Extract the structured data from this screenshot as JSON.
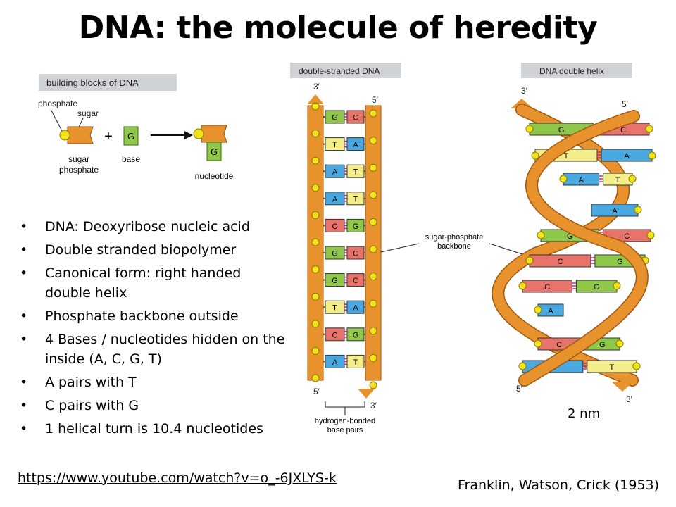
{
  "title": "DNA: the molecule of heredity",
  "bullets": [
    {
      "line1": "DNA: Deoxyribose nucleic acid"
    },
    {
      "line1": "Double stranded biopolymer"
    },
    {
      "line1": "Canonical form: right handed",
      "line2": "double helix"
    },
    {
      "line1": "Phosphate backbone outside"
    },
    {
      "line1": "4 Bases / nucleotides hidden on the",
      "line2": "inside (A, C, G, T)"
    },
    {
      "line1": "A pairs with T"
    },
    {
      "line1": "C pairs with G"
    },
    {
      "line1": "1 helical turn is 10.4 nucleotides"
    }
  ],
  "link": "https://www.youtube.com/watch?v=o_-6JXLYS-k",
  "credit": "Franklin, Watson, Crick (1953)",
  "blocks": {
    "header": "building blocks of DNA",
    "phosphate": "phosphate",
    "sugar": "sugar",
    "sugar_phosphate_1": "sugar",
    "sugar_phosphate_2": "phosphate",
    "base": "base",
    "base_letter": "G",
    "plus": "+",
    "nucleotide": "nucleotide",
    "nucleotide_letter": "G"
  },
  "ladder": {
    "header": "double-stranded DNA",
    "top_left": "3′",
    "top_right": "5′",
    "bottom_left": "5′",
    "bottom_right": "3′",
    "pairs": [
      [
        "G",
        "C"
      ],
      [
        "T",
        "A"
      ],
      [
        "A",
        "T"
      ],
      [
        "A",
        "T"
      ],
      [
        "C",
        "G"
      ],
      [
        "G",
        "C"
      ],
      [
        "G",
        "C"
      ],
      [
        "T",
        "A"
      ],
      [
        "C",
        "G"
      ],
      [
        "A",
        "T"
      ]
    ],
    "hbond_label_1": "hydrogen-bonded",
    "hbond_label_2": "base pairs",
    "backbone_label_1": "sugar-phosphate",
    "backbone_label_2": "backbone"
  },
  "helix": {
    "header": "DNA double helix",
    "top_left": "3′",
    "top_right": "5′",
    "bottom_left": "5′",
    "bottom_right": "3′",
    "pairs": [
      [
        "G",
        "C"
      ],
      [
        "T",
        "A"
      ],
      [
        "A",
        "T"
      ],
      [
        "A",
        ""
      ],
      [
        "G",
        "C"
      ],
      [
        "C",
        "G"
      ],
      [
        "C",
        "G"
      ],
      [
        "A",
        ""
      ],
      [
        "C",
        "G"
      ],
      [
        "A",
        "T"
      ]
    ],
    "width_label": "2 nm"
  },
  "colors": {
    "backbone": "#e8922e",
    "phosphate": "#f2e21a",
    "G": "#8fc74a",
    "C": "#e8736a",
    "A": "#4aa8e0",
    "T": "#f4ee8a"
  }
}
